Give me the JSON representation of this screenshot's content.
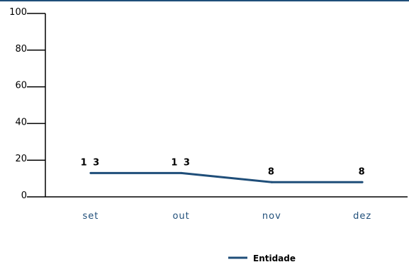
{
  "chart_data": {
    "type": "line",
    "categories": [
      "set",
      "out",
      "nov",
      "dez"
    ],
    "series": [
      {
        "name": "Entidade",
        "values": [
          13,
          13,
          8,
          8
        ],
        "labels": [
          "1 3",
          "1 3",
          "8",
          "8"
        ]
      }
    ],
    "y_ticks": [
      "0",
      "20",
      "40",
      "60",
      "80",
      "100"
    ],
    "ylim": [
      0,
      100
    ],
    "grid": false,
    "legend": "bottom",
    "colors": {
      "series": "#1f4e79",
      "axis": "#000000",
      "category_text": "#1f4e79"
    }
  }
}
